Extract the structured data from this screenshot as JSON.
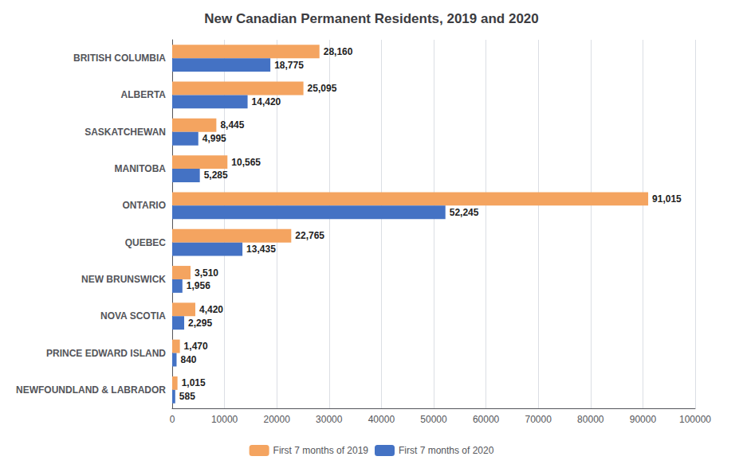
{
  "chart_data": {
    "type": "bar",
    "orientation": "horizontal",
    "title": "New Canadian Permanent Residents, 2019 and 2020",
    "categories": [
      "BRITISH COLUMBIA",
      "ALBERTA",
      "SASKATCHEWAN",
      "MANITOBA",
      "ONTARIO",
      "QUEBEC",
      "NEW BRUNSWICK",
      "NOVA SCOTIA",
      "PRINCE EDWARD ISLAND",
      "NEWFOUNDLAND & LABRADOR"
    ],
    "series": [
      {
        "name": "First 7 months of 2019",
        "color": "#F4A460",
        "values": [
          28160,
          25095,
          8445,
          10565,
          91015,
          22765,
          3510,
          4420,
          1470,
          1015
        ],
        "value_labels": [
          "28,160",
          "25,095",
          "8,445",
          "10,565",
          "91,015",
          "22,765",
          "3,510",
          "4,420",
          "1,470",
          "1,015"
        ]
      },
      {
        "name": "First 7 months of 2020",
        "color": "#4472C4",
        "values": [
          18775,
          14420,
          4995,
          5285,
          52245,
          13435,
          1956,
          2295,
          840,
          585
        ],
        "value_labels": [
          "18,775",
          "14,420",
          "4,995",
          "5,285",
          "52,245",
          "13,435",
          "1,956",
          "2,295",
          "840",
          "585"
        ]
      }
    ],
    "xlim": [
      0,
      100000
    ],
    "xticks": [
      0,
      10000,
      20000,
      30000,
      40000,
      50000,
      60000,
      70000,
      80000,
      90000,
      100000
    ],
    "grid": true,
    "legend": "bottom",
    "data_labels": true
  }
}
